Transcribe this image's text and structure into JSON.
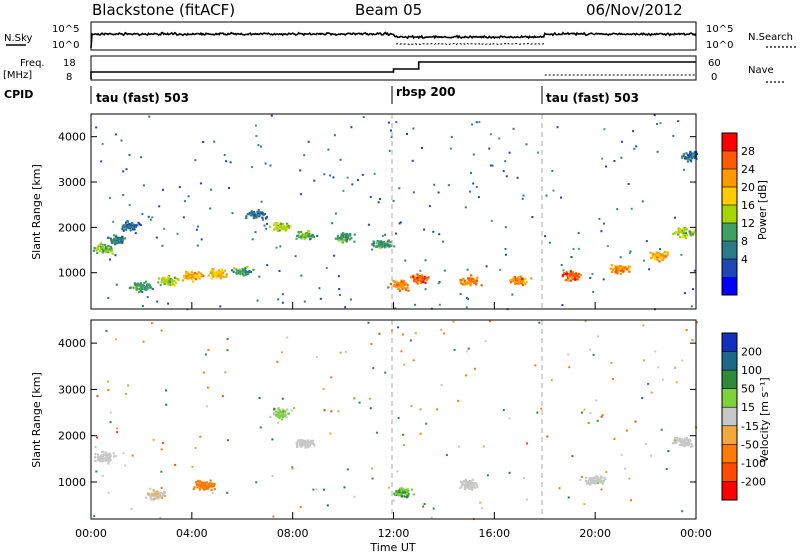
{
  "header": {
    "title": "Blackstone (fitACF)",
    "beam": "Beam 05",
    "date": "06/Nov/2012"
  },
  "top_panels": {
    "nsky_label": "N.Sky",
    "nsearch_label": "N.Search",
    "freq_label": "Freq.",
    "freq_unit": "[MHz]",
    "nave_label": "Nave",
    "cpid_label": "CPID",
    "left_ticks_n": [
      "10^5",
      "10^0"
    ],
    "right_ticks_n": [
      "10^5",
      "10^0"
    ],
    "left_ticks_freq": [
      "18",
      "8"
    ],
    "right_ticks_nave": [
      "60",
      "0"
    ]
  },
  "cpid_segments": [
    {
      "label": "tau (fast) 503",
      "start_hour": 0
    },
    {
      "label": "rbsp 200",
      "start_hour": 12
    },
    {
      "label": "tau (fast) 503",
      "start_hour": 18
    }
  ],
  "colorbars": {
    "power": {
      "label": "Power [dB]",
      "ticks": [
        "28",
        "24",
        "20",
        "16",
        "12",
        "8",
        "4"
      ],
      "colors": [
        "#ff0000",
        "#ff5a00",
        "#ff9900",
        "#ffcc00",
        "#a6d600",
        "#3fa060",
        "#2b7a8a",
        "#1e46b4",
        "#0000ff"
      ]
    },
    "velocity": {
      "label": "Velocity [m s⁻¹]",
      "ticks": [
        "200",
        "100",
        "50",
        "15",
        "-15",
        "-50",
        "-100",
        "-200"
      ],
      "colors": [
        "#1030c0",
        "#1c6a8a",
        "#2f8a3a",
        "#7ed33a",
        "#c8c8c8",
        "#f2a83a",
        "#ff7a00",
        "#ff4a00",
        "#ff0000"
      ]
    }
  },
  "chart_data": [
    {
      "type": "heatmap",
      "panel": "power",
      "ylabel": "Slant Range [km]",
      "ylim": [
        200,
        4500
      ],
      "xlim_hours": [
        0,
        24
      ],
      "yticks": [
        "1000",
        "2000",
        "3000",
        "4000"
      ],
      "series": [
        {
          "name": "Power [dB]",
          "points": [
            {
              "t": 0.5,
              "r": 1550,
              "v": 14
            },
            {
              "t": 1.0,
              "r": 1750,
              "v": 10
            },
            {
              "t": 1.5,
              "r": 2050,
              "v": 8
            },
            {
              "t": 2.0,
              "r": 700,
              "v": 12
            },
            {
              "t": 3.0,
              "r": 850,
              "v": 16
            },
            {
              "t": 4.0,
              "r": 950,
              "v": 22
            },
            {
              "t": 5.0,
              "r": 1000,
              "v": 20
            },
            {
              "t": 6.0,
              "r": 1050,
              "v": 12
            },
            {
              "t": 6.5,
              "r": 2300,
              "v": 8
            },
            {
              "t": 7.5,
              "r": 2050,
              "v": 16
            },
            {
              "t": 8.5,
              "r": 1850,
              "v": 14
            },
            {
              "t": 10.0,
              "r": 1800,
              "v": 12
            },
            {
              "t": 11.5,
              "r": 1650,
              "v": 12
            },
            {
              "t": 12.2,
              "r": 750,
              "v": 24
            },
            {
              "t": 13.0,
              "r": 900,
              "v": 26
            },
            {
              "t": 15.0,
              "r": 850,
              "v": 24
            },
            {
              "t": 17.0,
              "r": 850,
              "v": 24
            },
            {
              "t": 19.0,
              "r": 950,
              "v": 26
            },
            {
              "t": 21.0,
              "r": 1100,
              "v": 24
            },
            {
              "t": 22.5,
              "r": 1400,
              "v": 22
            },
            {
              "t": 23.5,
              "r": 1900,
              "v": 16
            },
            {
              "t": 23.8,
              "r": 3600,
              "v": 8
            }
          ]
        }
      ]
    },
    {
      "type": "heatmap",
      "panel": "velocity",
      "ylabel": "Slant Range [km]",
      "xlabel": "Time UT",
      "ylim": [
        200,
        4500
      ],
      "xlim_hours": [
        0,
        24
      ],
      "yticks": [
        "1000",
        "2000",
        "3000",
        "4000"
      ],
      "xticks": [
        "00:00",
        "04:00",
        "08:00",
        "12:00",
        "16:00",
        "20:00",
        "00:00"
      ],
      "series": [
        {
          "name": "Velocity [m s⁻¹]",
          "points": [
            {
              "t": 0.5,
              "r": 1550,
              "v": 0
            },
            {
              "t": 2.5,
              "r": 750,
              "v": -10
            },
            {
              "t": 4.5,
              "r": 950,
              "v": -60
            },
            {
              "t": 7.5,
              "r": 2500,
              "v": 20
            },
            {
              "t": 8.5,
              "r": 1850,
              "v": 0
            },
            {
              "t": 12.3,
              "r": 800,
              "v": 30
            },
            {
              "t": 15.0,
              "r": 950,
              "v": 0
            },
            {
              "t": 20.0,
              "r": 1050,
              "v": 0
            },
            {
              "t": 23.5,
              "r": 1900,
              "v": 0
            }
          ]
        }
      ]
    }
  ]
}
